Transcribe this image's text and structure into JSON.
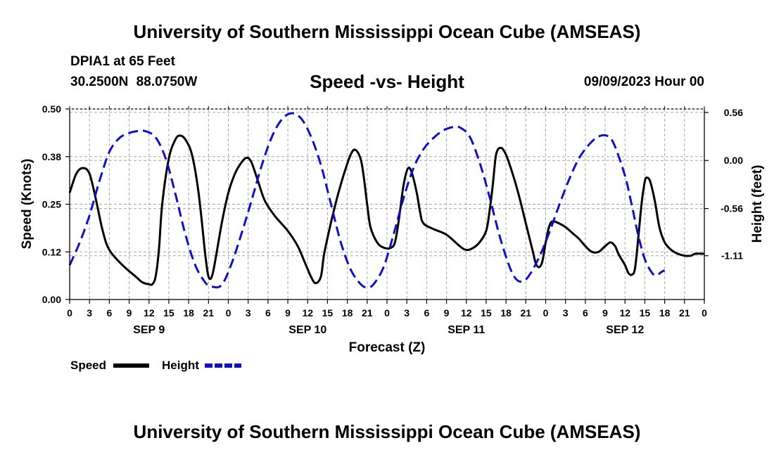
{
  "header": {
    "title": "University of Southern Mississippi Ocean Cube (AMSEAS)",
    "station": "DPIA1 at 65 Feet",
    "coords": "30.2500N  88.0750W",
    "subtitle": "Speed -vs- Height",
    "datetime": "09/09/2023 Hour 00"
  },
  "footer": {
    "title": "University of Southern Mississippi Ocean Cube (AMSEAS)"
  },
  "colors": {
    "speed": "#000000",
    "height": "#1010c8",
    "grid": "#a8a8a8"
  },
  "chart_data": {
    "type": "line",
    "title": "Speed -vs- Height",
    "xlabel": "Forecast (Z)",
    "ylabel_left": "Speed (Knots)",
    "ylabel_right": "Height (feet)",
    "x_unit": "forecast hour",
    "xlim": [
      0,
      96
    ],
    "x_ticks": [
      0,
      3,
      6,
      9,
      12,
      15,
      18,
      21,
      24,
      27,
      30,
      33,
      36,
      39,
      42,
      45,
      48,
      51,
      54,
      57,
      60,
      63,
      66,
      69,
      72,
      75,
      78,
      81,
      84,
      87,
      90,
      93,
      96
    ],
    "x_tick_labels": [
      "0",
      "3",
      "6",
      "9",
      "12",
      "15",
      "18",
      "21",
      "0",
      "3",
      "6",
      "9",
      "12",
      "15",
      "18",
      "21",
      "0",
      "3",
      "6",
      "9",
      "12",
      "15",
      "18",
      "21",
      "0",
      "3",
      "6",
      "9",
      "12",
      "15",
      "18",
      "21",
      "0"
    ],
    "date_labels": [
      {
        "label": "SEP 9",
        "hour": 12
      },
      {
        "label": "SEP 10",
        "hour": 36
      },
      {
        "label": "SEP 11",
        "hour": 60
      },
      {
        "label": "SEP 12",
        "hour": 84
      }
    ],
    "ylim_left": [
      0,
      0.5
    ],
    "y_ticks_left": [
      0,
      0.125,
      0.25,
      0.375,
      0.5
    ],
    "y_tick_labels_left": [
      "0.00",
      "0.12",
      "0.25",
      "0.38",
      "0.50"
    ],
    "ylim_right": [
      -1.62,
      0.6
    ],
    "y_ticks_right": [
      0.56,
      0.0,
      -0.56,
      -1.11
    ],
    "y_tick_labels_right": [
      "0.56",
      "0.00",
      "-0.56",
      "-1.11"
    ],
    "grid": true,
    "legend": [
      {
        "name": "Speed",
        "style": "solid"
      },
      {
        "name": "Height",
        "style": "dashed"
      }
    ],
    "series": [
      {
        "name": "Speed",
        "axis": "left",
        "style": "solid",
        "points": [
          [
            0,
            0.28
          ],
          [
            1,
            0.33
          ],
          [
            2,
            0.345
          ],
          [
            3,
            0.33
          ],
          [
            4,
            0.26
          ],
          [
            5,
            0.18
          ],
          [
            6,
            0.13
          ],
          [
            8,
            0.09
          ],
          [
            10,
            0.06
          ],
          [
            11,
            0.045
          ],
          [
            12,
            0.04
          ],
          [
            12.5,
            0.04
          ],
          [
            13,
            0.06
          ],
          [
            13.5,
            0.13
          ],
          [
            14,
            0.25
          ],
          [
            15,
            0.37
          ],
          [
            16,
            0.42
          ],
          [
            16.7,
            0.43
          ],
          [
            17.5,
            0.42
          ],
          [
            18.5,
            0.38
          ],
          [
            19.5,
            0.28
          ],
          [
            20.5,
            0.12
          ],
          [
            21,
            0.06
          ],
          [
            21.5,
            0.06
          ],
          [
            22,
            0.1
          ],
          [
            23,
            0.2
          ],
          [
            24,
            0.28
          ],
          [
            25,
            0.33
          ],
          [
            26,
            0.36
          ],
          [
            26.8,
            0.372
          ],
          [
            27.5,
            0.36
          ],
          [
            28.5,
            0.31
          ],
          [
            29.5,
            0.26
          ],
          [
            31,
            0.22
          ],
          [
            33,
            0.18
          ],
          [
            34.5,
            0.14
          ],
          [
            35.5,
            0.1
          ],
          [
            36.5,
            0.06
          ],
          [
            37.2,
            0.043
          ],
          [
            38,
            0.06
          ],
          [
            38.5,
            0.12
          ],
          [
            39.5,
            0.2
          ],
          [
            40.5,
            0.27
          ],
          [
            41.5,
            0.33
          ],
          [
            42.5,
            0.38
          ],
          [
            43.2,
            0.393
          ],
          [
            44,
            0.37
          ],
          [
            44.5,
            0.32
          ],
          [
            45,
            0.25
          ],
          [
            45.5,
            0.19
          ],
          [
            46.5,
            0.15
          ],
          [
            47.5,
            0.136
          ],
          [
            48.5,
            0.135
          ],
          [
            49.2,
            0.15
          ],
          [
            49.8,
            0.21
          ],
          [
            50.5,
            0.3
          ],
          [
            51.2,
            0.345
          ],
          [
            51.8,
            0.33
          ],
          [
            52.5,
            0.28
          ],
          [
            53,
            0.23
          ],
          [
            53.5,
            0.2
          ],
          [
            55,
            0.185
          ],
          [
            57,
            0.17
          ],
          [
            59,
            0.14
          ],
          [
            60,
            0.13
          ],
          [
            61,
            0.135
          ],
          [
            62,
            0.15
          ],
          [
            63,
            0.18
          ],
          [
            63.5,
            0.23
          ],
          [
            64,
            0.3
          ],
          [
            64.5,
            0.38
          ],
          [
            65.2,
            0.398
          ],
          [
            66,
            0.38
          ],
          [
            67,
            0.33
          ],
          [
            68,
            0.27
          ],
          [
            69,
            0.2
          ],
          [
            70,
            0.13
          ],
          [
            70.5,
            0.095
          ],
          [
            71,
            0.085
          ],
          [
            71.5,
            0.1
          ],
          [
            72,
            0.15
          ],
          [
            72.5,
            0.19
          ],
          [
            73,
            0.205
          ],
          [
            74,
            0.2
          ],
          [
            75,
            0.19
          ],
          [
            76,
            0.175
          ],
          [
            77,
            0.16
          ],
          [
            78,
            0.14
          ],
          [
            79,
            0.125
          ],
          [
            80,
            0.125
          ],
          [
            81,
            0.14
          ],
          [
            81.8,
            0.15
          ],
          [
            82.5,
            0.14
          ],
          [
            83,
            0.12
          ],
          [
            84,
            0.09
          ],
          [
            84.5,
            0.07
          ],
          [
            85,
            0.065
          ],
          [
            85.5,
            0.08
          ],
          [
            86,
            0.16
          ],
          [
            86.5,
            0.25
          ],
          [
            87,
            0.31
          ],
          [
            87.3,
            0.32
          ],
          [
            87.8,
            0.31
          ],
          [
            88.5,
            0.26
          ],
          [
            89.2,
            0.19
          ],
          [
            90,
            0.15
          ],
          [
            91,
            0.13
          ],
          [
            92,
            0.12
          ],
          [
            93,
            0.115
          ],
          [
            94,
            0.115
          ],
          [
            94.6,
            0.12
          ],
          [
            96,
            0.12
          ]
        ]
      },
      {
        "name": "Height",
        "axis": "right",
        "style": "dashed",
        "points": [
          [
            0,
            -1.22
          ],
          [
            1.5,
            -0.96
          ],
          [
            3,
            -0.64
          ],
          [
            4.5,
            -0.24
          ],
          [
            6,
            0.1
          ],
          [
            7.5,
            0.26
          ],
          [
            9,
            0.32
          ],
          [
            10.5,
            0.345
          ],
          [
            11.5,
            0.34
          ],
          [
            13,
            0.27
          ],
          [
            14.5,
            0.03
          ],
          [
            16,
            -0.39
          ],
          [
            17.5,
            -0.86
          ],
          [
            19,
            -1.22
          ],
          [
            20.5,
            -1.42
          ],
          [
            21.5,
            -1.47
          ],
          [
            23,
            -1.45
          ],
          [
            24.5,
            -1.2
          ],
          [
            26,
            -0.85
          ],
          [
            27.5,
            -0.47
          ],
          [
            29,
            -0.07
          ],
          [
            30.5,
            0.26
          ],
          [
            32,
            0.47
          ],
          [
            33.5,
            0.55
          ],
          [
            35,
            0.49
          ],
          [
            36.5,
            0.28
          ],
          [
            38,
            -0.05
          ],
          [
            39.5,
            -0.5
          ],
          [
            41,
            -0.95
          ],
          [
            42.5,
            -1.27
          ],
          [
            44,
            -1.44
          ],
          [
            45,
            -1.48
          ],
          [
            46,
            -1.44
          ],
          [
            47.5,
            -1.24
          ],
          [
            49,
            -0.86
          ],
          [
            50.5,
            -0.44
          ],
          [
            52,
            -0.09
          ],
          [
            53.5,
            0.13
          ],
          [
            55,
            0.26
          ],
          [
            56.5,
            0.35
          ],
          [
            58,
            0.39
          ],
          [
            59,
            0.385
          ],
          [
            60.5,
            0.28
          ],
          [
            62,
            -0.02
          ],
          [
            63.5,
            -0.42
          ],
          [
            65,
            -0.87
          ],
          [
            66.5,
            -1.23
          ],
          [
            67.5,
            -1.38
          ],
          [
            68.5,
            -1.41
          ],
          [
            69.5,
            -1.34
          ],
          [
            71,
            -1.13
          ],
          [
            72.5,
            -0.85
          ],
          [
            74,
            -0.53
          ],
          [
            75.5,
            -0.23
          ],
          [
            77,
            0.02
          ],
          [
            78.5,
            0.18
          ],
          [
            80,
            0.28
          ],
          [
            81.5,
            0.28
          ],
          [
            82.5,
            0.16
          ],
          [
            84,
            -0.18
          ],
          [
            85,
            -0.51
          ],
          [
            86,
            -0.87
          ],
          [
            87,
            -1.15
          ],
          [
            88,
            -1.3
          ],
          [
            88.7,
            -1.34
          ],
          [
            89.5,
            -1.3
          ],
          [
            90,
            -1.28
          ]
        ]
      }
    ]
  },
  "chart_labels": {
    "xlabel": "Forecast (Z)",
    "ylabel_left": "Speed (Knots)",
    "ylabel_right": "Height (feet)",
    "legend_speed": "Speed",
    "legend_height": "Height"
  }
}
